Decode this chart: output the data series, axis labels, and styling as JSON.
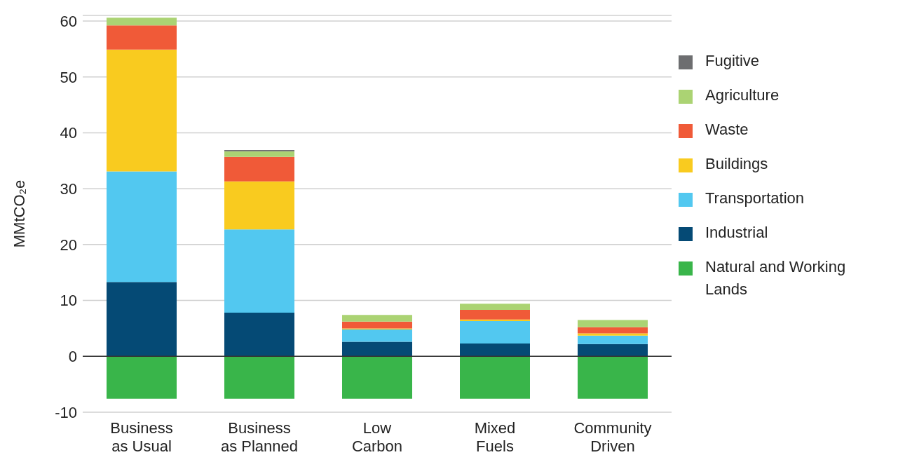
{
  "chart_data": {
    "type": "bar",
    "stacked": true,
    "ylabel": "MMtCO₂e",
    "categories": [
      "Business as Usual",
      "Business as Planned",
      "Low Carbon",
      "Mixed Fuels",
      "Community Driven"
    ],
    "series": [
      {
        "name": "Natural and Working Lands",
        "color": "#39b54a",
        "values": [
          -7.6,
          -7.6,
          -7.6,
          -7.6,
          -7.6
        ]
      },
      {
        "name": "Industrial",
        "color": "#054a75",
        "values": [
          13.3,
          7.8,
          2.6,
          2.3,
          2.2
        ]
      },
      {
        "name": "Transportation",
        "color": "#52c8f0",
        "values": [
          19.8,
          14.9,
          2.2,
          4.0,
          1.5
        ]
      },
      {
        "name": "Buildings",
        "color": "#f9cb1f",
        "values": [
          21.8,
          8.6,
          0.2,
          0.3,
          0.4
        ]
      },
      {
        "name": "Waste",
        "color": "#f05a38",
        "values": [
          4.3,
          4.4,
          1.2,
          1.7,
          1.1
        ]
      },
      {
        "name": "Agriculture",
        "color": "#abd373",
        "values": [
          1.4,
          1.0,
          1.2,
          1.1,
          1.3
        ]
      },
      {
        "name": "Fugitive",
        "color": "#6d6e70",
        "values": [
          0,
          0.2,
          0,
          0,
          0
        ]
      }
    ],
    "ylim": [
      -10,
      61
    ],
    "yticks": [
      -10,
      0,
      10,
      20,
      30,
      40,
      50,
      60
    ],
    "grid": "y",
    "legend": "right",
    "ref_lines": [
      {
        "axis": "y",
        "value": 0,
        "color": "#333333"
      }
    ]
  }
}
